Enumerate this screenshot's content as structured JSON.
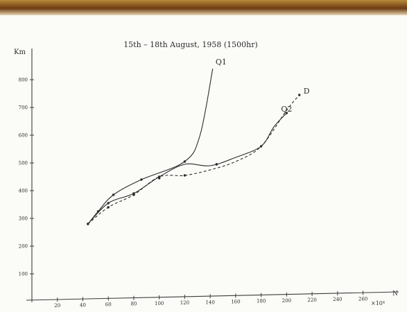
{
  "chart_data": {
    "type": "line",
    "title": "15th – 18th August, 1958 (1500hr)",
    "ylabel": "Km",
    "xlabel": "N",
    "x_multiplier_label": "×10⁴",
    "xlim": [
      0,
      288
    ],
    "ylim": [
      100,
      880
    ],
    "x_ticks": [
      0,
      20,
      40,
      60,
      80,
      100,
      120,
      140,
      160,
      180,
      200,
      220,
      240,
      260
    ],
    "x_tick_labels": [
      "",
      "20",
      "40",
      "60",
      "80",
      "100",
      "120",
      "140",
      "160",
      "180",
      "200",
      "220",
      "240",
      "260"
    ],
    "y_ticks": [
      100,
      200,
      300,
      400,
      500,
      600,
      700,
      800
    ],
    "y_tick_labels": [
      "100",
      "200",
      "300",
      "400",
      "500",
      "600",
      "700",
      "800"
    ],
    "grid": false,
    "series": [
      {
        "name": "Q1",
        "style": "solid",
        "color": "#2b2b2b",
        "x": [
          44,
          52,
          64,
          86,
          120,
          132,
          142
        ],
        "y": [
          280,
          325,
          385,
          440,
          505,
          600,
          840
        ],
        "markers": [
          [
            44,
            280
          ],
          [
            52,
            325
          ],
          [
            64,
            385
          ],
          [
            86,
            440
          ],
          [
            120,
            505
          ]
        ]
      },
      {
        "name": "Q2",
        "style": "solid",
        "color": "#2b2b2b",
        "x": [
          44,
          60,
          80,
          100,
          120,
          140,
          160,
          180,
          190,
          200
        ],
        "y": [
          280,
          355,
          390,
          450,
          495,
          490,
          520,
          560,
          630,
          680
        ],
        "markers": [
          [
            44,
            280
          ],
          [
            60,
            355
          ],
          [
            80,
            390
          ],
          [
            100,
            450
          ],
          [
            145,
            495
          ],
          [
            200,
            680
          ]
        ]
      },
      {
        "name": "D",
        "style": "dashed",
        "color": "#2b2b2b",
        "x": [
          44,
          60,
          80,
          100,
          120,
          140,
          160,
          180,
          200,
          210
        ],
        "y": [
          280,
          340,
          385,
          450,
          455,
          475,
          505,
          560,
          690,
          745
        ],
        "markers": [
          [
            60,
            340
          ],
          [
            80,
            385
          ],
          [
            100,
            445
          ],
          [
            120,
            455
          ],
          [
            145,
            495
          ],
          [
            180,
            560
          ],
          [
            210,
            745
          ]
        ]
      }
    ]
  }
}
